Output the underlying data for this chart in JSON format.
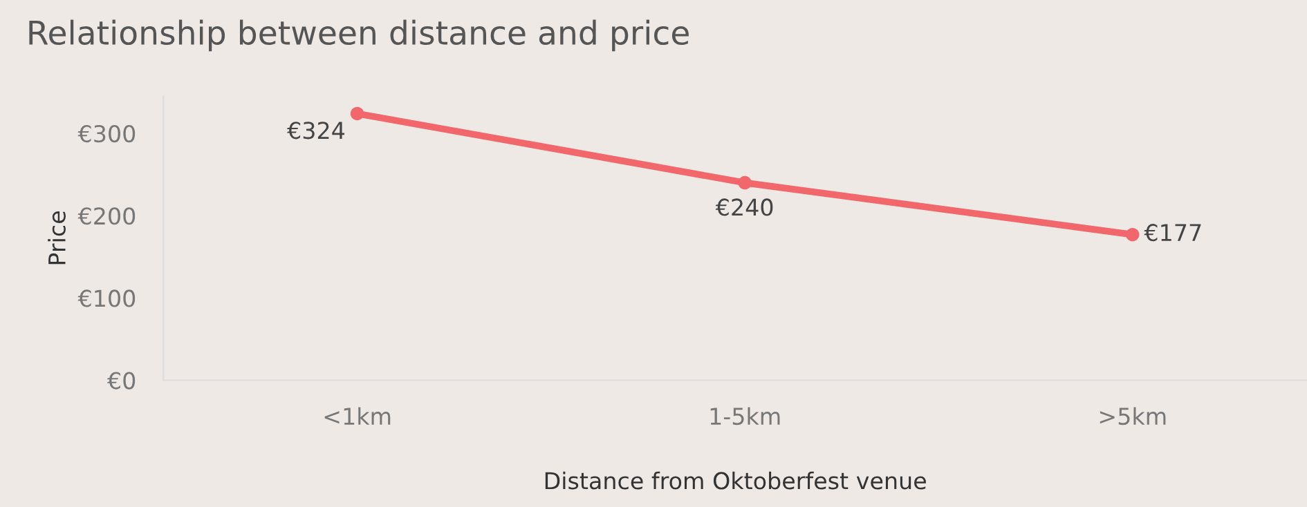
{
  "chart_data": {
    "type": "line",
    "title": "Relationship between distance and price",
    "xlabel": "Distance from Oktoberfest venue",
    "ylabel": "Price",
    "categories": [
      "<1km",
      "1-5km",
      ">5km"
    ],
    "series": [
      {
        "color": "#f1676b",
        "values": [
          324,
          240,
          177
        ],
        "value_labels": [
          "€324",
          "€240",
          "€177"
        ]
      }
    ],
    "ylim": [
      0,
      345
    ],
    "yticks": [
      {
        "value": 0,
        "label": "€0"
      },
      {
        "value": 100,
        "label": "€100"
      },
      {
        "value": 200,
        "label": "€200"
      },
      {
        "value": 300,
        "label": "€300"
      }
    ],
    "grid": false,
    "marker": "circle",
    "line_style": "solid"
  }
}
